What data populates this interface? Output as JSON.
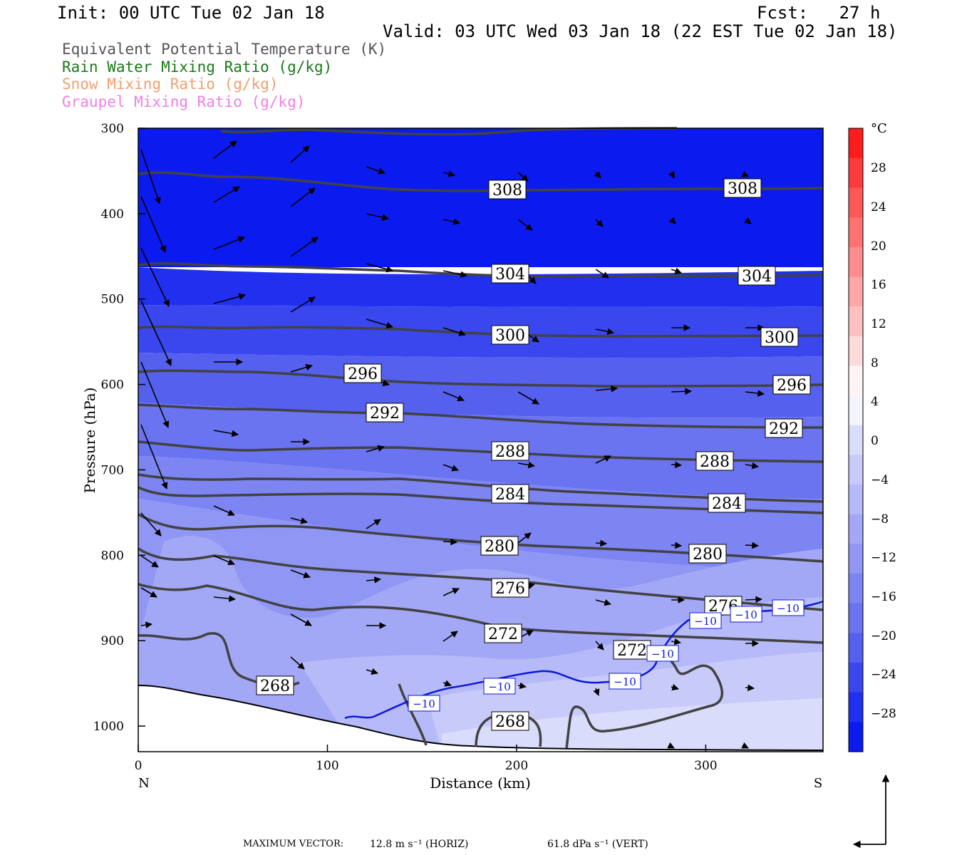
{
  "header": {
    "init": "Init: 00 UTC Tue 02 Jan 18",
    "fcst": "Fcst:   27 h",
    "valid": "Valid: 03 UTC Wed 03 Jan 18 (22 EST Tue 02 Jan 18)"
  },
  "legend": [
    {
      "label": "Equivalent Potential Temperature (K)",
      "color": "#555555"
    },
    {
      "label": "Rain Water Mixing Ratio (g/kg)",
      "color": "#1a7a1a"
    },
    {
      "label": "Snow Mixing Ratio (g/kg)",
      "color": "#f0a070"
    },
    {
      "label": "Graupel Mixing Ratio (g/kg)",
      "color": "#f080e8"
    }
  ],
  "chart_data": {
    "type": "cross-section-contour",
    "xlabel": "Distance (km)",
    "ylabel": "Pressure (hPa)",
    "x_ticks": [
      0,
      100,
      200,
      300
    ],
    "y_ticks": [
      300,
      400,
      500,
      600,
      700,
      800,
      900,
      1000
    ],
    "xlim": [
      0,
      362
    ],
    "ylim_hPa": [
      300,
      1030
    ],
    "x_end_labels": {
      "left": "N",
      "right": "S"
    },
    "colorbar": {
      "unit": "°C",
      "labels": [
        "28",
        "24",
        "20",
        "16",
        "12",
        "8",
        "4",
        "0",
        "−4",
        "−8",
        "−12",
        "−16",
        "−20",
        "−24",
        "−28"
      ]
    },
    "theta_e_contours": [
      {
        "level": 308,
        "labels": [
          "308",
          "308"
        ]
      },
      {
        "level": 304,
        "labels": [
          "304",
          "304"
        ]
      },
      {
        "level": 300,
        "labels": [
          "300",
          "300"
        ]
      },
      {
        "level": 296,
        "labels": [
          "296",
          "296"
        ]
      },
      {
        "level": 292,
        "labels": [
          "292",
          "292"
        ]
      },
      {
        "level": 288,
        "labels": [
          "288",
          "288"
        ]
      },
      {
        "level": 284,
        "labels": [
          "284",
          "284"
        ]
      },
      {
        "level": 280,
        "labels": [
          "280",
          "280"
        ]
      },
      {
        "level": 276,
        "labels": [
          "276",
          "276"
        ]
      },
      {
        "level": 272,
        "labels": [
          "272",
          "272"
        ]
      },
      {
        "level": 268,
        "labels": [
          "268",
          "268"
        ]
      }
    ],
    "temperature_contour": {
      "level": -10,
      "labels": [
        "−10",
        "−10",
        "−10",
        "−10",
        "−10",
        "−10",
        "−10",
        "−10"
      ]
    },
    "max_vector": {
      "prefix": "MAXIMUM VECTOR:",
      "horiz": "12.8 m s⁻¹ (HORIZ)",
      "vert": "61.8 dPa s⁻¹ (VERT)"
    }
  }
}
